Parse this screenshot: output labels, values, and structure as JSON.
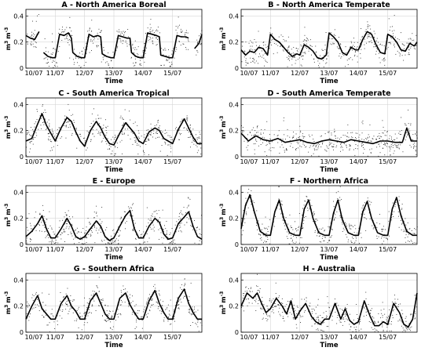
{
  "figure": {
    "axis_labels": {
      "x": "Time",
      "y_base": "m",
      "y_sup1": "3",
      "y_mid": "m",
      "y_sup2": "-3"
    }
  },
  "chart_data": [
    {
      "type": "line",
      "title": "A - North America Boreal",
      "xlabel": "Time",
      "ylabel": "m3 m-3",
      "x_ticks": [
        "10/07",
        "11/07",
        "12/07",
        "13/07",
        "14/07",
        "15/07"
      ],
      "y_ticks": [
        "0",
        "0.2",
        "0.4"
      ],
      "ylim": [
        0,
        0.45
      ],
      "grid": true,
      "style": "scatter-dots-with-thick-mean-line",
      "x": [
        0,
        0.15,
        0.3,
        0.45,
        0.55,
        0.6,
        0.75,
        0.9,
        1,
        1.15,
        1.3,
        1.45,
        1.55,
        1.6,
        1.75,
        1.9,
        2,
        2.15,
        2.3,
        2.45,
        2.55,
        2.6,
        2.75,
        2.9,
        3,
        3.15,
        3.3,
        3.45,
        3.55,
        3.6,
        3.75,
        3.9,
        4,
        4.15,
        4.3,
        4.45,
        4.55,
        4.6,
        4.75,
        4.9,
        5,
        5.15,
        5.3,
        5.45,
        5.55,
        5.6,
        5.75,
        5.9,
        6
      ],
      "values": [
        0.25,
        0.23,
        0.22,
        0.28,
        null,
        0.12,
        0.09,
        0.08,
        0.08,
        0.26,
        0.25,
        0.27,
        0.23,
        0.12,
        0.09,
        0.08,
        0.08,
        0.26,
        0.24,
        0.25,
        0.24,
        0.11,
        0.09,
        0.08,
        0.08,
        0.25,
        0.24,
        0.23,
        0.23,
        0.12,
        0.09,
        0.08,
        0.08,
        0.27,
        0.26,
        0.25,
        0.24,
        0.1,
        0.09,
        0.08,
        0.08,
        0.25,
        0.24,
        0.24,
        0.23,
        null,
        0.15,
        0.19,
        0.26
      ]
    },
    {
      "type": "line",
      "title": "B - North America Temperate",
      "xlabel": "Time",
      "ylabel": "m3 m-3",
      "x_ticks": [
        "10/07",
        "11/07",
        "12/07",
        "13/07",
        "14/07",
        "15/07"
      ],
      "y_ticks": [
        "0",
        "0.2",
        "0.4"
      ],
      "ylim": [
        0,
        0.45
      ],
      "grid": true,
      "style": "scatter-dots-with-thick-mean-line",
      "x": [
        0,
        0.15,
        0.3,
        0.45,
        0.6,
        0.75,
        0.9,
        1,
        1.15,
        1.3,
        1.45,
        1.6,
        1.75,
        1.9,
        2,
        2.15,
        2.3,
        2.45,
        2.6,
        2.75,
        2.9,
        3,
        3.15,
        3.3,
        3.45,
        3.6,
        3.75,
        3.9,
        4,
        4.15,
        4.3,
        4.45,
        4.6,
        4.75,
        4.9,
        5,
        5.15,
        5.3,
        5.45,
        5.6,
        5.75,
        5.9,
        6
      ],
      "values": [
        0.14,
        0.1,
        0.13,
        0.12,
        0.16,
        0.15,
        0.1,
        0.26,
        0.22,
        0.2,
        0.16,
        0.12,
        0.09,
        0.11,
        0.1,
        0.18,
        0.16,
        0.13,
        0.08,
        0.07,
        0.1,
        0.27,
        0.24,
        0.2,
        0.12,
        0.1,
        0.16,
        0.14,
        0.14,
        0.22,
        0.28,
        0.26,
        0.18,
        0.12,
        0.11,
        0.26,
        0.24,
        0.2,
        0.14,
        0.13,
        0.19,
        0.17,
        0.2
      ]
    },
    {
      "type": "line",
      "title": "C - South America Tropical",
      "xlabel": "Time",
      "ylabel": "m3 m-3",
      "x_ticks": [
        "10/07",
        "11/07",
        "12/07",
        "13/07",
        "14/07",
        "15/07"
      ],
      "y_ticks": [
        "0",
        "0.2",
        "0.4"
      ],
      "ylim": [
        0,
        0.45
      ],
      "grid": true,
      "style": "scatter-dots-with-thick-mean-line",
      "x": [
        0,
        0.2,
        0.4,
        0.55,
        0.7,
        0.85,
        1,
        1.2,
        1.4,
        1.55,
        1.7,
        1.85,
        2,
        2.2,
        2.4,
        2.55,
        2.7,
        2.85,
        3,
        3.2,
        3.4,
        3.55,
        3.7,
        3.85,
        4,
        4.2,
        4.4,
        4.55,
        4.7,
        4.85,
        5,
        5.2,
        5.4,
        5.55,
        5.7,
        5.85,
        6
      ],
      "values": [
        0.12,
        0.14,
        0.25,
        0.33,
        0.24,
        0.18,
        0.12,
        0.22,
        0.3,
        0.27,
        0.19,
        0.12,
        0.08,
        0.2,
        0.27,
        0.22,
        0.15,
        0.1,
        0.09,
        0.18,
        0.26,
        0.22,
        0.18,
        0.12,
        0.1,
        0.19,
        0.22,
        0.2,
        0.14,
        0.12,
        0.1,
        0.21,
        0.29,
        0.22,
        0.15,
        0.1,
        0.1
      ]
    },
    {
      "type": "line",
      "title": "D - South America Temperate",
      "xlabel": "Time",
      "ylabel": "m3 m-3",
      "x_ticks": [
        "10/07",
        "11/07",
        "12/07",
        "13/07",
        "14/07",
        "15/07"
      ],
      "y_ticks": [
        "0",
        "0.2",
        "0.4"
      ],
      "ylim": [
        0,
        0.45
      ],
      "grid": true,
      "style": "scatter-dots-with-thick-mean-line",
      "x": [
        0,
        0.25,
        0.5,
        0.75,
        1,
        1.25,
        1.5,
        1.75,
        2,
        2.25,
        2.5,
        2.75,
        3,
        3.25,
        3.5,
        3.75,
        4,
        4.25,
        4.5,
        4.75,
        5,
        5.25,
        5.5,
        5.65,
        5.8,
        6
      ],
      "values": [
        0.18,
        0.12,
        0.16,
        0.13,
        0.12,
        0.14,
        0.11,
        0.12,
        0.13,
        0.11,
        0.1,
        0.12,
        0.13,
        0.12,
        0.11,
        0.13,
        0.12,
        0.11,
        0.1,
        0.12,
        0.12,
        0.11,
        0.11,
        0.22,
        0.12,
        0.12
      ]
    },
    {
      "type": "line",
      "title": "E - Europe",
      "xlabel": "Time",
      "ylabel": "m3 m-3",
      "x_ticks": [
        "10/07",
        "11/07",
        "12/07",
        "13/07",
        "14/07",
        "15/07"
      ],
      "y_ticks": [
        "0",
        "0.2",
        "0.4"
      ],
      "ylim": [
        0,
        0.45
      ],
      "grid": true,
      "style": "scatter-dots-with-thick-mean-line",
      "x": [
        0,
        0.2,
        0.4,
        0.55,
        0.7,
        0.85,
        1,
        1.2,
        1.4,
        1.55,
        1.7,
        1.85,
        2,
        2.2,
        2.4,
        2.55,
        2.7,
        2.85,
        3,
        3.2,
        3.4,
        3.55,
        3.7,
        3.85,
        4,
        4.2,
        4.4,
        4.55,
        4.7,
        4.85,
        5,
        5.2,
        5.4,
        5.55,
        5.7,
        5.85,
        6
      ],
      "values": [
        0.06,
        0.1,
        0.16,
        0.22,
        0.12,
        0.05,
        0.05,
        0.12,
        0.2,
        0.14,
        0.06,
        0.04,
        0.06,
        0.12,
        0.18,
        0.14,
        0.06,
        0.03,
        0.05,
        0.14,
        0.22,
        0.26,
        0.12,
        0.05,
        0.05,
        0.14,
        0.2,
        0.17,
        0.08,
        0.04,
        0.05,
        0.16,
        0.21,
        0.25,
        0.14,
        0.06,
        0.04
      ]
    },
    {
      "type": "line",
      "title": "F - Northern Africa",
      "xlabel": "Time",
      "ylabel": "m3 m-3",
      "x_ticks": [
        "10/07",
        "11/07",
        "12/07",
        "13/07",
        "14/07",
        "15/07"
      ],
      "y_ticks": [
        "0",
        "0.2",
        "0.4"
      ],
      "ylim": [
        0,
        0.45
      ],
      "grid": true,
      "style": "scatter-dots-with-thick-mean-line",
      "x": [
        0,
        0.15,
        0.3,
        0.45,
        0.65,
        0.85,
        1,
        1.15,
        1.3,
        1.45,
        1.65,
        1.85,
        2,
        2.15,
        2.3,
        2.45,
        2.65,
        2.85,
        3,
        3.15,
        3.3,
        3.45,
        3.65,
        3.85,
        4,
        4.15,
        4.3,
        4.45,
        4.65,
        4.85,
        5,
        5.15,
        5.3,
        5.45,
        5.65,
        5.85,
        6
      ],
      "values": [
        0.12,
        0.3,
        0.38,
        0.25,
        0.1,
        0.07,
        0.07,
        0.25,
        0.34,
        0.2,
        0.09,
        0.07,
        0.07,
        0.27,
        0.34,
        0.2,
        0.09,
        0.07,
        0.07,
        0.24,
        0.34,
        0.19,
        0.09,
        0.07,
        0.07,
        0.25,
        0.33,
        0.2,
        0.09,
        0.07,
        0.07,
        0.27,
        0.36,
        0.22,
        0.1,
        0.07,
        0.07
      ]
    },
    {
      "type": "line",
      "title": "G - Southern Africa",
      "xlabel": "Time",
      "ylabel": "m3 m-3",
      "x_ticks": [
        "10/07",
        "11/07",
        "12/07",
        "13/07",
        "14/07",
        "15/07"
      ],
      "y_ticks": [
        "0",
        "0.2",
        "0.4"
      ],
      "ylim": [
        0,
        0.45
      ],
      "grid": true,
      "style": "scatter-dots-with-thick-mean-line",
      "x": [
        0,
        0.2,
        0.4,
        0.55,
        0.7,
        0.85,
        1,
        1.2,
        1.4,
        1.55,
        1.7,
        1.85,
        2,
        2.2,
        2.4,
        2.55,
        2.7,
        2.85,
        3,
        3.2,
        3.4,
        3.55,
        3.7,
        3.85,
        4,
        4.2,
        4.4,
        4.55,
        4.7,
        4.85,
        5,
        5.2,
        5.4,
        5.55,
        5.7,
        5.85,
        6
      ],
      "values": [
        0.1,
        0.2,
        0.28,
        0.18,
        0.14,
        0.1,
        0.1,
        0.22,
        0.28,
        0.2,
        0.16,
        0.1,
        0.1,
        0.24,
        0.3,
        0.22,
        0.14,
        0.1,
        0.1,
        0.26,
        0.3,
        0.21,
        0.15,
        0.1,
        0.1,
        0.24,
        0.32,
        0.22,
        0.15,
        0.1,
        0.1,
        0.26,
        0.33,
        0.22,
        0.15,
        0.1,
        0.1
      ]
    },
    {
      "type": "line",
      "title": "H - Australia",
      "xlabel": "Time",
      "ylabel": "m3 m-3",
      "x_ticks": [
        "10/07",
        "11/07",
        "12/07",
        "13/07",
        "14/07",
        "15/07"
      ],
      "y_ticks": [
        "0",
        "0.2",
        "0.4"
      ],
      "ylim": [
        0,
        0.45
      ],
      "grid": true,
      "style": "scatter-dots-with-thick-mean-line",
      "x": [
        0,
        0.2,
        0.4,
        0.55,
        0.7,
        0.85,
        1,
        1.2,
        1.4,
        1.55,
        1.7,
        1.85,
        2,
        2.2,
        2.4,
        2.55,
        2.7,
        2.85,
        3,
        3.2,
        3.4,
        3.55,
        3.7,
        3.85,
        4,
        4.2,
        4.4,
        4.55,
        4.7,
        4.85,
        5,
        5.2,
        5.4,
        5.55,
        5.7,
        5.85,
        6
      ],
      "values": [
        0.2,
        0.3,
        0.26,
        0.3,
        0.22,
        0.15,
        0.18,
        0.26,
        0.2,
        0.14,
        0.24,
        0.1,
        0.16,
        0.22,
        0.12,
        0.08,
        0.06,
        0.1,
        0.1,
        0.22,
        0.1,
        0.18,
        0.09,
        0.06,
        0.08,
        0.24,
        0.12,
        0.05,
        0.05,
        0.08,
        0.06,
        0.22,
        0.15,
        0.06,
        0.04,
        0.1,
        0.3
      ]
    }
  ]
}
